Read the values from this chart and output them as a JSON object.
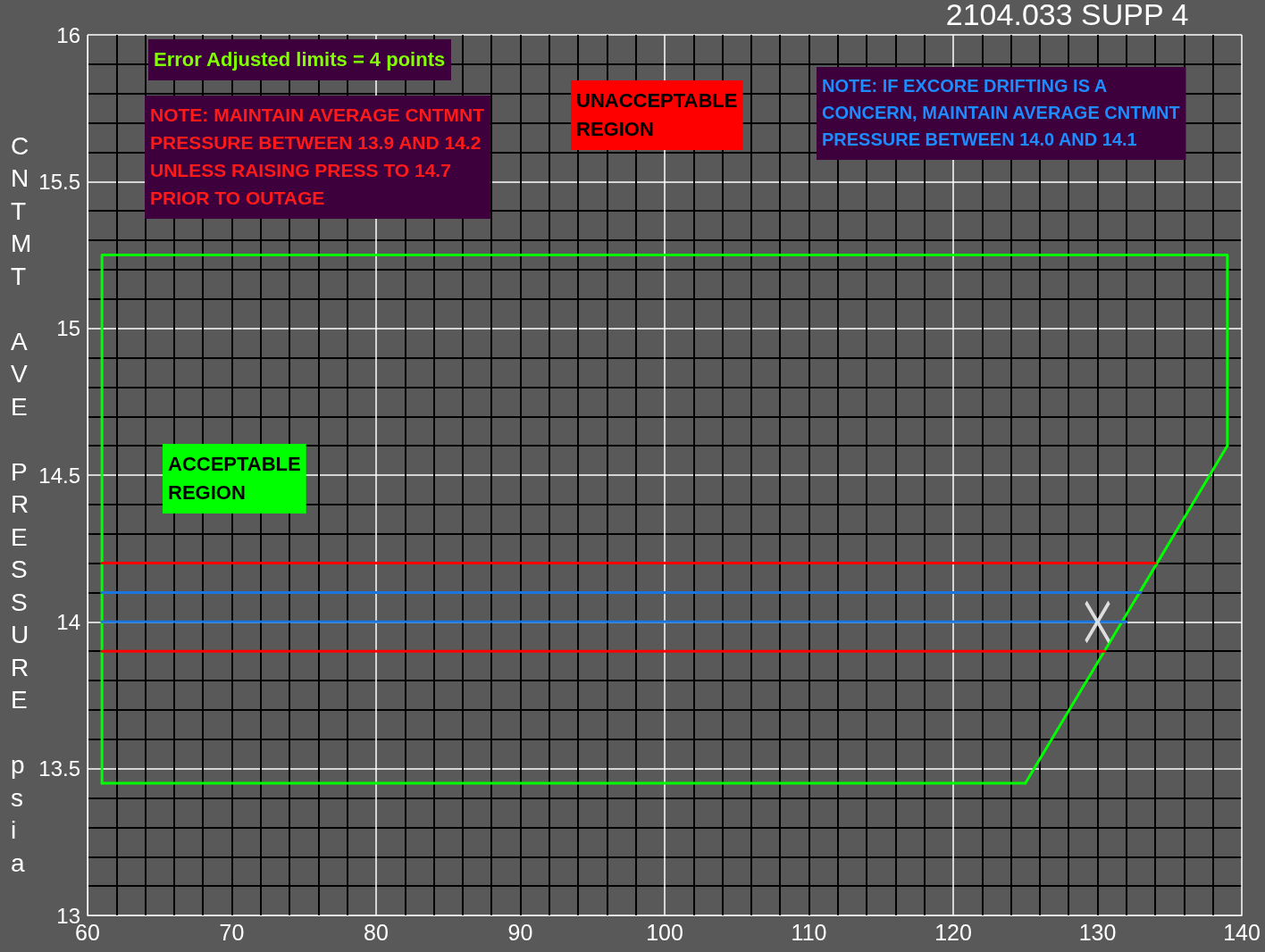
{
  "chart_data": {
    "type": "line",
    "title": "2104.033 SUPP 4",
    "ylabel": "CNTMT AVE PRESSURE psia",
    "xlim": [
      60,
      140
    ],
    "ylim": [
      13,
      16
    ],
    "xticks": [
      60,
      70,
      80,
      90,
      100,
      110,
      120,
      130,
      140
    ],
    "yticks": [
      13,
      13.5,
      14,
      14.5,
      15,
      15.5,
      16
    ],
    "grid": true,
    "annotations": [
      "Error Adjusted limits = 4 points",
      "NOTE: MAINTAIN AVERAGE CNTMNT\nPRESSURE BETWEEN 13.9 AND 14.2\nUNLESS RAISING PRESS TO 14.7\nPRIOR TO OUTAGE",
      "UNACCEPTABLE\nREGION",
      "NOTE: IF EXCORE DRIFTING IS A\nCONCERN, MAINTAIN AVERAGE CNTMNT\nPRESSURE BETWEEN 14.0 AND 14.1",
      "ACCEPTABLE\nREGION"
    ],
    "series": [
      {
        "color": "#00ff00",
        "x": [
          61,
          61,
          139,
          139,
          125
        ],
        "values": [
          13.45,
          15.25,
          15.25,
          14.6,
          13.45
        ]
      },
      {
        "color": "#00ff00",
        "x": [
          61,
          125
        ],
        "values": [
          13.45,
          13.45
        ]
      },
      {
        "color": "#ff0000",
        "x": [
          61,
          134
        ],
        "values": [
          14.2,
          14.2
        ]
      },
      {
        "color": "#1a75e0",
        "x": [
          61,
          133
        ],
        "values": [
          14.1,
          14.1
        ]
      },
      {
        "color": "#1a75e0",
        "x": [
          61,
          132
        ],
        "values": [
          14.0,
          14.0
        ]
      },
      {
        "color": "#ff0000",
        "x": [
          61,
          130.5
        ],
        "values": [
          13.9,
          13.9
        ]
      },
      {
        "type": "scatter",
        "marker": "cross",
        "color": "#ffffff",
        "x": [
          130
        ],
        "values": [
          14.0
        ]
      }
    ]
  }
}
